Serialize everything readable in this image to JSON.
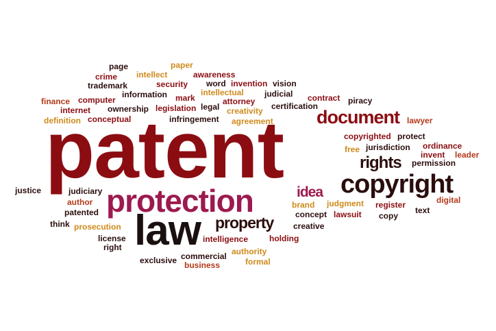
{
  "words": {
    "patent": "patent",
    "protection": "protection",
    "law": "law",
    "copyright": "copyright",
    "document": "document",
    "rights": "rights",
    "property": "property",
    "idea": "idea",
    "page": "page",
    "paper": "paper",
    "crime": "crime",
    "intellect": "intellect",
    "awareness": "awareness",
    "trademark": "trademark",
    "security": "security",
    "word": "word",
    "invention": "invention",
    "vision": "vision",
    "information": "information",
    "mark": "mark",
    "intellectual": "intellectual",
    "judicial": "judicial",
    "finance": "finance",
    "computer": "computer",
    "attorney": "attorney",
    "contract": "contract",
    "piracy": "piracy",
    "internet": "internet",
    "ownership": "ownership",
    "legislation": "legislation",
    "legal": "legal",
    "creativity": "creativity",
    "certification": "certification",
    "definition": "definition",
    "conceptual": "conceptual",
    "infringement": "infringement",
    "agreement": "agreement",
    "lawyer": "lawyer",
    "copyrighted": "copyrighted",
    "protect": "protect",
    "free": "free",
    "jurisdiction": "jurisdiction",
    "ordinance": "ordinance",
    "invent": "invent",
    "leader": "leader",
    "permission": "permission",
    "justice": "justice",
    "judiciary": "judiciary",
    "author": "author",
    "patented": "patented",
    "think": "think",
    "prosecution": "prosecution",
    "license": "license",
    "right": "right",
    "exclusive": "exclusive",
    "commercial": "commercial",
    "business": "business",
    "intelligence": "intelligence",
    "authority": "authority",
    "formal": "formal",
    "holding": "holding",
    "creative": "creative",
    "brand": "brand",
    "concept": "concept",
    "judgment": "judgment",
    "lawsuit": "lawsuit",
    "register": "register",
    "copy": "copy",
    "text": "text",
    "digital": "digital"
  }
}
